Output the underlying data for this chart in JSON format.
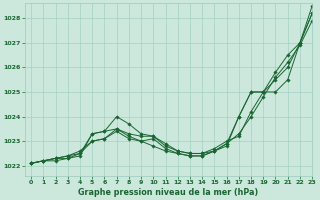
{
  "title": "Graphe pression niveau de la mer (hPa)",
  "background_color": "#cce8dd",
  "grid_color": "#99ccbb",
  "line_color": "#1a6632",
  "xlim": [
    -0.5,
    23
  ],
  "ylim": [
    1021.6,
    1028.6
  ],
  "yticks": [
    1022,
    1023,
    1024,
    1025,
    1026,
    1027,
    1028
  ],
  "xticks": [
    0,
    1,
    2,
    3,
    4,
    5,
    6,
    7,
    8,
    9,
    10,
    11,
    12,
    13,
    14,
    15,
    16,
    17,
    18,
    19,
    20,
    21,
    22,
    23
  ],
  "series": [
    [
      1022.1,
      1022.2,
      1022.2,
      1022.3,
      1022.4,
      1023.3,
      1023.4,
      1024.0,
      1023.7,
      1023.3,
      1023.2,
      1022.9,
      1022.6,
      1022.5,
      1022.5,
      1022.7,
      1023.0,
      1023.2,
      1024.2,
      1025.0,
      1025.8,
      1026.5,
      1027.0,
      1028.2
    ],
    [
      1022.1,
      1022.2,
      1022.3,
      1022.3,
      1022.5,
      1023.0,
      1023.1,
      1023.5,
      1023.3,
      1023.2,
      1023.2,
      1022.8,
      1022.6,
      1022.5,
      1022.5,
      1022.6,
      1022.9,
      1023.3,
      1024.0,
      1024.8,
      1025.6,
      1026.2,
      1026.9,
      1027.9
    ],
    [
      1022.1,
      1022.2,
      1022.3,
      1022.4,
      1022.6,
      1023.0,
      1023.1,
      1023.4,
      1023.1,
      1023.0,
      1023.1,
      1022.7,
      1022.5,
      1022.4,
      1022.4,
      1022.6,
      1022.9,
      1024.0,
      1025.0,
      1025.0,
      1025.0,
      1025.5,
      1027.0,
      1028.2
    ],
    [
      1022.1,
      1022.2,
      1022.3,
      1022.4,
      1022.5,
      1023.3,
      1023.4,
      1023.5,
      1023.2,
      1023.0,
      1022.8,
      1022.6,
      1022.5,
      1022.4,
      1022.4,
      1022.6,
      1022.8,
      1024.0,
      1025.0,
      1025.0,
      1025.5,
      1026.0,
      1027.0,
      1028.5
    ]
  ],
  "title_fontsize": 5.8,
  "tick_fontsize": 4.5,
  "line_width": 0.7,
  "marker_size": 1.8
}
